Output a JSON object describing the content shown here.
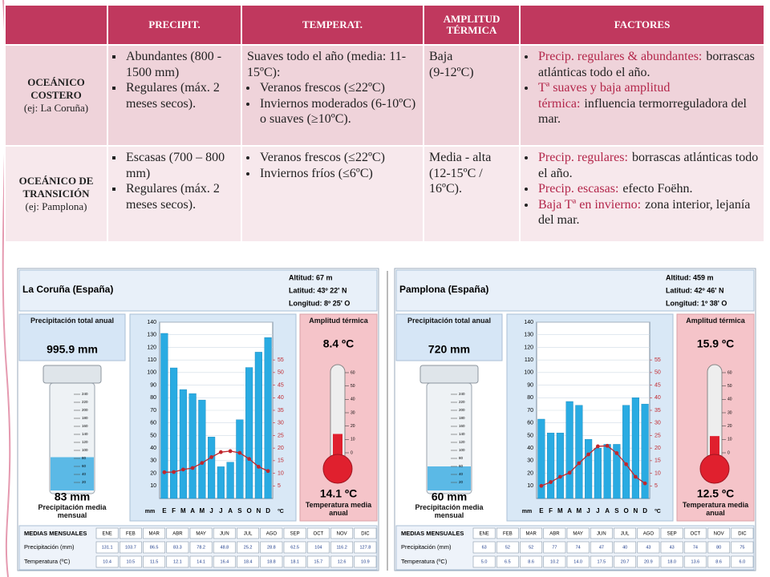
{
  "table": {
    "header": [
      "PRECIPIT.",
      "TEMPERAT.",
      "AMPLITUD TÉRMICA",
      "FACTORES"
    ],
    "rows": [
      {
        "label": "OCEÁNICO COSTERO",
        "example": "(ej: La Coruña)",
        "precip": [
          "Abundantes (800 - 1500 mm)",
          "Regulares (máx. 2 meses secos)."
        ],
        "temp_intro": "Suaves todo el año (media: 11-15ºC):",
        "temp": [
          "Veranos frescos (≤22ºC)",
          "Inviernos moderados (6-10ºC) o suaves (≥10ºC)."
        ],
        "amplitude": [
          "Baja",
          "(9-12ºC)"
        ],
        "factors": [
          {
            "key": "Precip. regulares & abundantes:",
            "text": "borrascas atlánticas todo el año."
          },
          {
            "key": "Tª suaves y baja amplitud térmica:",
            "text": "influencia termorreguladora del mar."
          }
        ]
      },
      {
        "label": "OCEÁNICO DE TRANSICIÓN",
        "example": "(ej: Pamplona)",
        "precip": [
          "Escasas (700 – 800 mm)",
          "Regulares (máx. 2 meses secos)."
        ],
        "temp": [
          "Veranos frescos (≤22ºC)",
          "Inviernos  fríos (≤6ºC)"
        ],
        "amplitude": [
          "Media - alta (12-15ºC / 16ºC)."
        ],
        "factors": [
          {
            "key": "Precip. regulares:",
            "text": "borrascas atlánticas todo el año."
          },
          {
            "key": "Precip. escasas:",
            "text": "efecto Foëhn."
          },
          {
            "key": "Baja Tª en invierno:",
            "text": "zona interior, lejanía del mar."
          }
        ]
      }
    ]
  },
  "chart_data": [
    {
      "type": "bar",
      "title": "La Coruña (España)",
      "altitude": "Altitud: 67 m",
      "latitude": "Latitud: 43º 22' N",
      "longitude": "Longitud: 8º 25' O",
      "annual_precip_label": "Precipitación total anual",
      "annual_precip": "995.9 mm",
      "amplitude_label": "Amplitud térmica",
      "amplitude": "8.4 ºC",
      "mean_precip": {
        "value": 83,
        "label": "83 mm"
      },
      "mean_precip_label": "Precipitación media mensual",
      "mean_temp": {
        "value": 14.1,
        "label": "14.1 ºC"
      },
      "mean_temp_label": "Temperatura media anual",
      "beaker_lim": [
        0,
        240
      ],
      "beaker_ticks": [
        20,
        40,
        60,
        80,
        100,
        120,
        140,
        160,
        180,
        200,
        220,
        240
      ],
      "thermo_lim": [
        0,
        60
      ],
      "thermo_ticks": [
        0,
        10,
        20,
        30,
        40,
        50,
        60
      ],
      "categories": [
        "E",
        "F",
        "M",
        "A",
        "M",
        "J",
        "J",
        "A",
        "S",
        "O",
        "N",
        "D"
      ],
      "ylabel": "mm",
      "y2label": "ºC",
      "ylim": [
        0,
        140
      ],
      "yticks": [
        10,
        20,
        30,
        40,
        50,
        60,
        70,
        80,
        90,
        100,
        110,
        120,
        130,
        140
      ],
      "y2lim": [
        0,
        70
      ],
      "y2ticks": [
        5,
        10,
        15,
        20,
        25,
        30,
        35,
        40,
        45,
        50,
        55
      ],
      "series": [
        {
          "name": "Precipitación (mm)",
          "color": "#29abe2",
          "values": [
            131.1,
            103.7,
            86.5,
            83.3,
            78.2,
            48.8,
            25.2,
            28.8,
            62.5,
            104,
            116.2,
            127.8
          ]
        },
        {
          "name": "Temperatura (ºC)",
          "color": "#c1272d",
          "axis": "y2",
          "values": [
            10.4,
            10.5,
            11.5,
            12.1,
            14.1,
            16.4,
            18.4,
            18.8,
            18.1,
            15.7,
            12.6,
            10.9
          ]
        }
      ],
      "table_title": "MEDIAS MENSUALES",
      "months": [
        "ENE",
        "FEB",
        "MAR",
        "ABR",
        "MAY",
        "JUN",
        "JUL",
        "AGO",
        "SEP",
        "OCT",
        "NOV",
        "DIC"
      ]
    },
    {
      "type": "bar",
      "title": "Pamplona (España)",
      "altitude": "Altitud: 459 m",
      "latitude": "Latitud: 42º 46' N",
      "longitude": "Longitud: 1º 38' O",
      "annual_precip_label": "Precipitación total anual",
      "annual_precip": "720 mm",
      "amplitude_label": "Amplitud térmica",
      "amplitude": "15.9 ºC",
      "mean_precip": {
        "value": 60,
        "label": "60 mm"
      },
      "mean_precip_label": "Precipitación media mensual",
      "mean_temp": {
        "value": 12.5,
        "label": "12.5 ºC"
      },
      "mean_temp_label": "Temperatura media anual",
      "beaker_lim": [
        0,
        240
      ],
      "beaker_ticks": [
        20,
        40,
        60,
        80,
        100,
        120,
        140,
        160,
        180,
        200,
        220,
        240
      ],
      "thermo_lim": [
        0,
        60
      ],
      "thermo_ticks": [
        0,
        10,
        20,
        30,
        40,
        50,
        60
      ],
      "categories": [
        "E",
        "F",
        "M",
        "A",
        "M",
        "J",
        "J",
        "A",
        "S",
        "O",
        "N",
        "D"
      ],
      "ylabel": "mm",
      "y2label": "ºC",
      "ylim": [
        0,
        140
      ],
      "yticks": [
        10,
        20,
        30,
        40,
        50,
        60,
        70,
        80,
        90,
        100,
        110,
        120,
        130,
        140
      ],
      "y2lim": [
        0,
        70
      ],
      "y2ticks": [
        5,
        10,
        15,
        20,
        25,
        30,
        35,
        40,
        45,
        50,
        55
      ],
      "series": [
        {
          "name": "Precipitación (mm)",
          "color": "#29abe2",
          "values": [
            63,
            52,
            52,
            77,
            74,
            47,
            40,
            43,
            43,
            74,
            80,
            75
          ]
        },
        {
          "name": "Temperatura (ºC)",
          "color": "#c1272d",
          "axis": "y2",
          "values": [
            5,
            6.5,
            8.6,
            10.2,
            14,
            17.5,
            20.7,
            20.9,
            18,
            13.6,
            8.6,
            6
          ],
          "value_labels": [
            "5.0",
            "6.5",
            "8.6",
            "10.2",
            "14.0",
            "17.5",
            "20.7",
            "20.9",
            "18.0",
            "13.6",
            "8.6",
            "6.0"
          ]
        }
      ],
      "table_title": "MEDIAS MENSUALES",
      "months": [
        "ENE",
        "FEB",
        "MAR",
        "ABR",
        "MAY",
        "JUN",
        "JUL",
        "AGO",
        "SEP",
        "OCT",
        "NOV",
        "DIC"
      ]
    }
  ]
}
